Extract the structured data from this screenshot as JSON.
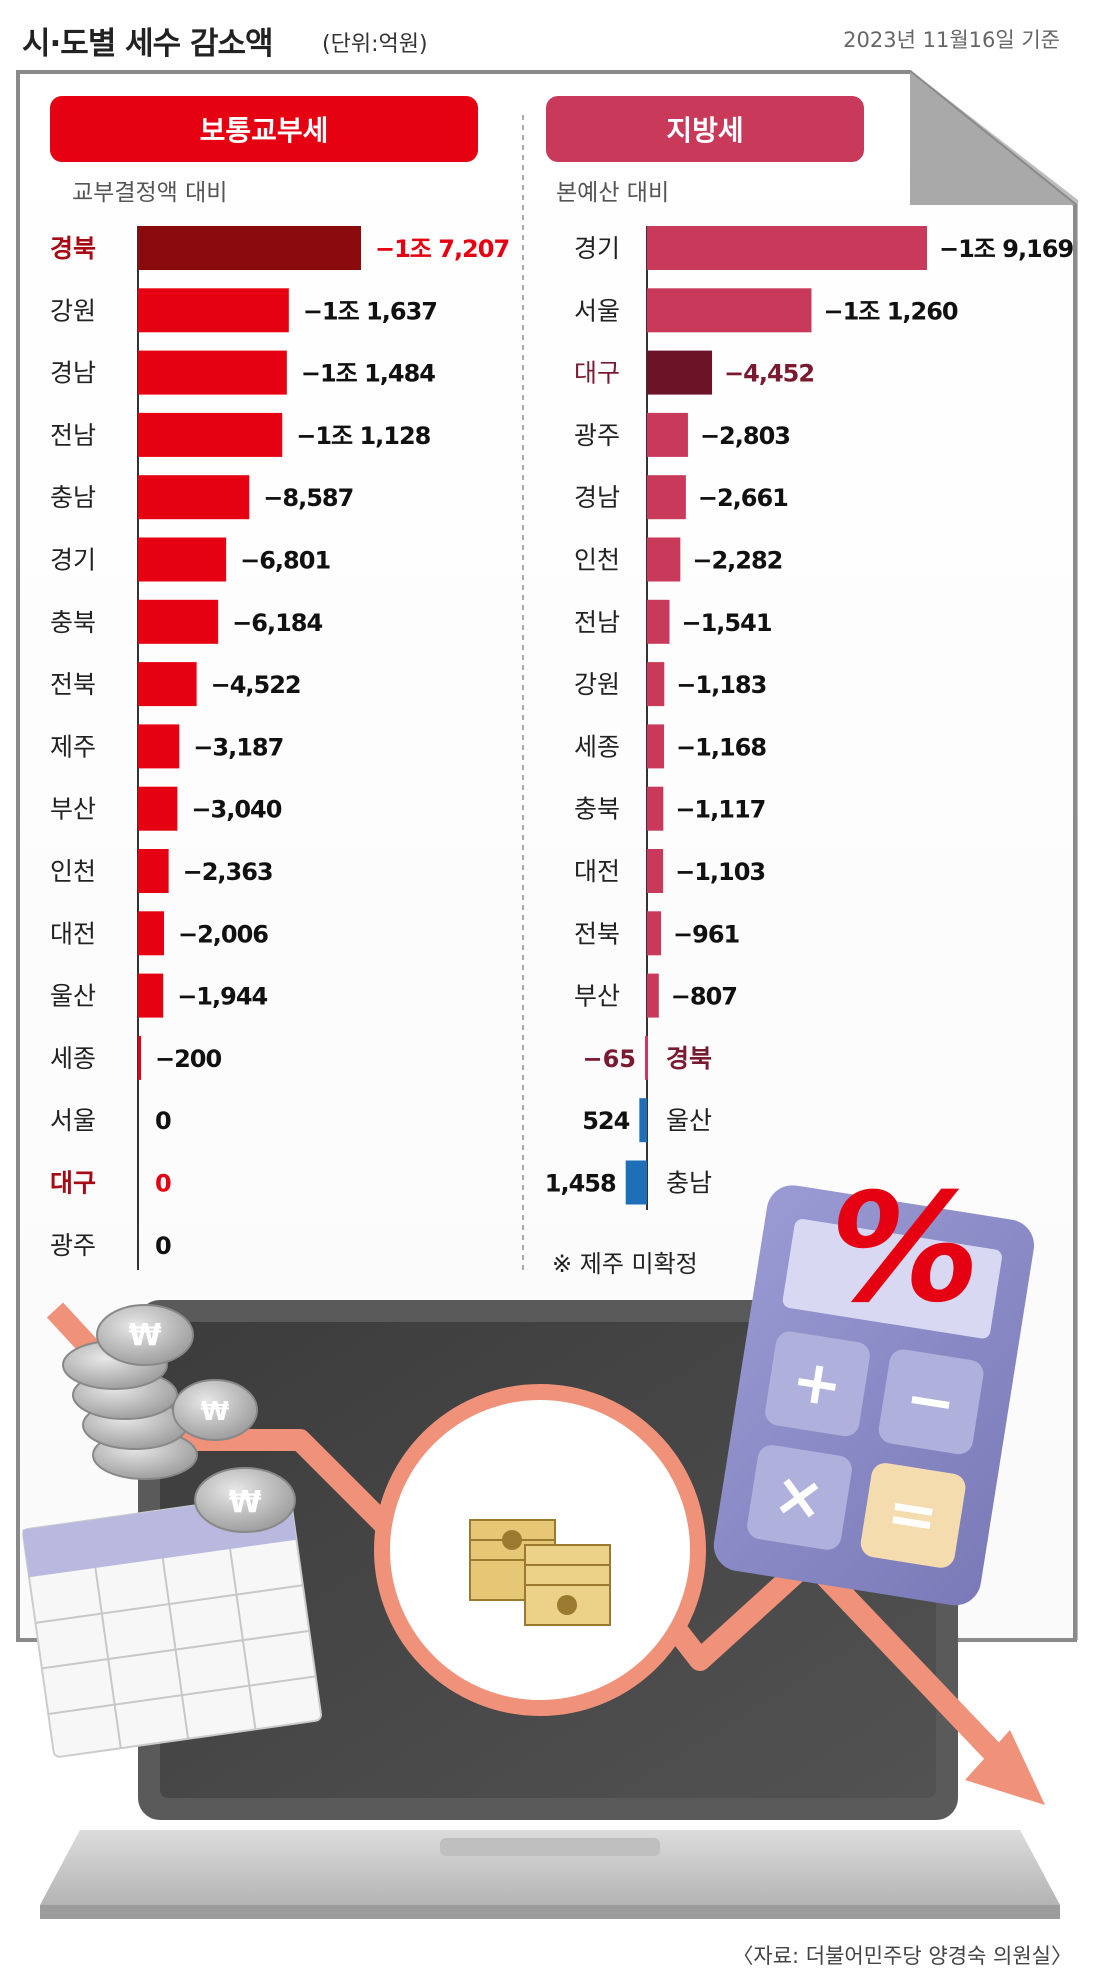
{
  "header": {
    "title": "시·도별 세수 감소액",
    "unit": "(단위:억원)",
    "date": "2023년 11월16일 기준"
  },
  "source": "〈자료: 더불어민주당 양경숙 의원실〉",
  "colors": {
    "left_bar": "#e50012",
    "left_highlight_bar": "#8b0a0e",
    "left_highlight_text": "#a60a14",
    "right_bar": "#c8395a",
    "right_highlight_bar": "#6b1428",
    "right_highlight_text": "#7a1a30",
    "positive_bar": "#1f6fb8",
    "header_left": "#e50012",
    "header_right": "#c8395a",
    "panel_border": "#8a8a8a"
  },
  "illustration": {
    "percent_sign": "%",
    "calculator_keys": [
      "+",
      "−",
      "×",
      "="
    ],
    "icons": [
      "coin-stack-icon",
      "calendar-icon",
      "laptop-icon",
      "cash-bundle-icon",
      "calculator-icon",
      "down-trend-arrow-icon"
    ]
  },
  "chart_data": [
    {
      "type": "bar",
      "orientation": "horizontal",
      "title": "보통교부세",
      "subtitle": "교부결정액 대비",
      "categories": [
        "경북",
        "강원",
        "경남",
        "전남",
        "충남",
        "경기",
        "충북",
        "전북",
        "제주",
        "부산",
        "인천",
        "대전",
        "울산",
        "세종",
        "서울",
        "대구",
        "광주"
      ],
      "values": [
        -17207,
        -11637,
        -11484,
        -11128,
        -8587,
        -6801,
        -6184,
        -4522,
        -3187,
        -3040,
        -2363,
        -2006,
        -1944,
        -200,
        0,
        0,
        0
      ],
      "labels": [
        "−1조 7,207",
        "−1조 1,637",
        "−1조 1,484",
        "−1조 1,128",
        "−8,587",
        "−6,801",
        "−6,184",
        "−4,522",
        "−3,187",
        "−3,040",
        "−2,363",
        "−2,006",
        "−1,944",
        "−200",
        "0",
        "0",
        "0"
      ],
      "highlight": [
        "경북",
        "대구"
      ]
    },
    {
      "type": "bar",
      "orientation": "horizontal",
      "title": "지방세",
      "subtitle": "본예산 대비",
      "categories": [
        "경기",
        "서울",
        "대구",
        "광주",
        "경남",
        "인천",
        "전남",
        "강원",
        "세종",
        "충북",
        "대전",
        "전북",
        "부산",
        "경북",
        "울산",
        "충남"
      ],
      "values": [
        -19169,
        -11260,
        -4452,
        -2803,
        -2661,
        -2282,
        -1541,
        -1183,
        -1168,
        -1117,
        -1103,
        -961,
        -807,
        -65,
        524,
        1458
      ],
      "labels": [
        "−1조 9,169",
        "−1조 1,260",
        "−4,452",
        "−2,803",
        "−2,661",
        "−2,282",
        "−1,541",
        "−1,183",
        "−1,168",
        "−1,117",
        "−1,103",
        "−961",
        "−807",
        "−65",
        "524",
        "1,458"
      ],
      "highlight": [
        "대구",
        "경북"
      ],
      "note": "※ 제주 미확정"
    }
  ]
}
